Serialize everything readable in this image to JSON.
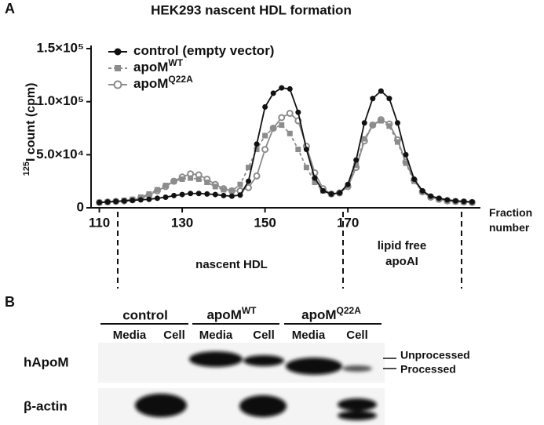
{
  "panel_labels": [
    "A",
    "B"
  ],
  "chart_data": {
    "type": "line",
    "title": "HEK293 nascent HDL formation",
    "y_label_sup": "125",
    "y_label": "I count (cpm)",
    "x_label": "Fraction number",
    "x": [
      110,
      112,
      114,
      116,
      118,
      120,
      122,
      124,
      126,
      128,
      130,
      132,
      134,
      136,
      138,
      140,
      142,
      144,
      146,
      148,
      150,
      152,
      154,
      156,
      158,
      160,
      162,
      164,
      166,
      168,
      170,
      172,
      174,
      176,
      178,
      180,
      182,
      184,
      186,
      188,
      190,
      192,
      194,
      196,
      198,
      200
    ],
    "xlim": [
      108,
      202
    ],
    "xticks": [
      110,
      130,
      150,
      170
    ],
    "ylim": [
      0,
      150000
    ],
    "yticks": [
      0,
      {
        "value": 50000,
        "label": "5.0×10⁴"
      },
      {
        "value": 100000,
        "label": "1.0×10⁵"
      },
      {
        "value": 150000,
        "label": "1.5×10⁵"
      }
    ],
    "annotations": [
      "nascent HDL",
      "lipid free",
      "apoAI"
    ],
    "series": [
      {
        "name": "control (empty vector)",
        "color": "#111111",
        "marker": "circle",
        "dashed": false,
        "values": [
          5000,
          5500,
          6000,
          6500,
          7000,
          7500,
          8000,
          9000,
          10000,
          11500,
          12500,
          13500,
          13500,
          13000,
          12500,
          11500,
          11000,
          12000,
          25000,
          60000,
          95000,
          108000,
          113000,
          112000,
          90000,
          55000,
          28000,
          16000,
          13000,
          14000,
          22000,
          45000,
          80000,
          103000,
          110000,
          103000,
          80000,
          50000,
          27000,
          16000,
          11000,
          9000,
          7500,
          6500,
          6000,
          5500
        ]
      },
      {
        "name": "apoM",
        "sup": "WT",
        "color": "#8c8c8c",
        "marker": "square",
        "dashed": true,
        "values": [
          5000,
          5500,
          6000,
          7000,
          8000,
          10000,
          13000,
          17000,
          21000,
          25000,
          27000,
          28000,
          27000,
          24000,
          20000,
          17000,
          16000,
          22000,
          38000,
          55000,
          68000,
          75000,
          78000,
          70000,
          55000,
          38000,
          24000,
          16000,
          13000,
          14000,
          21000,
          40000,
          65000,
          78000,
          82000,
          77000,
          62000,
          42000,
          25000,
          15000,
          10000,
          8000,
          6500,
          6000,
          5500,
          5000
        ]
      },
      {
        "name": "apoM",
        "sup": "Q22A",
        "color": "#8c8c8c",
        "marker": "open-circle",
        "dashed": false,
        "values": [
          5000,
          5500,
          6000,
          6500,
          7500,
          9000,
          12000,
          16000,
          20000,
          25000,
          29000,
          32000,
          31000,
          27000,
          22000,
          18000,
          16000,
          16000,
          19000,
          30000,
          55000,
          75000,
          85000,
          89000,
          82000,
          58000,
          33000,
          18000,
          13000,
          14000,
          20000,
          38000,
          63000,
          78000,
          83000,
          79000,
          64000,
          43000,
          26000,
          15000,
          10000,
          8000,
          6500,
          6000,
          5500,
          5000
        ]
      }
    ]
  },
  "blot": {
    "groups": [
      {
        "name": "control"
      },
      {
        "name": "apoM",
        "sup": "WT"
      },
      {
        "name": "apoM",
        "sup": "Q22A"
      }
    ],
    "lanes": [
      "Media",
      "Cell",
      "Media",
      "Cell",
      "Media",
      "Cell"
    ],
    "rows": [
      "hApoM",
      "β-actin"
    ],
    "markers": [
      "Unprocessed",
      "Processed"
    ]
  }
}
